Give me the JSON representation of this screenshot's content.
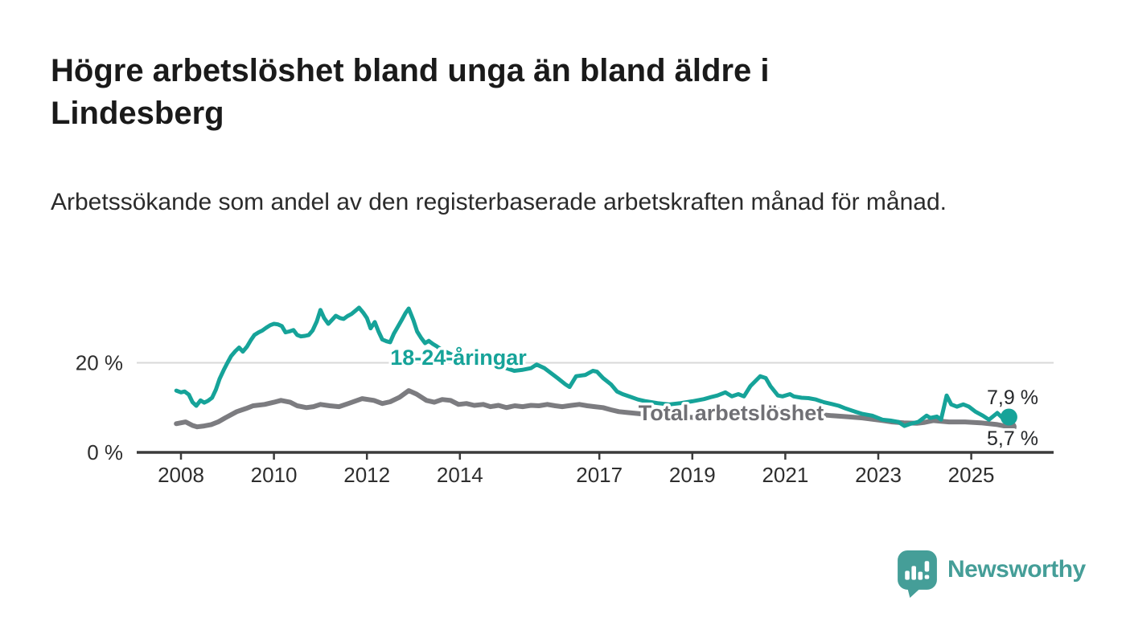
{
  "header": {
    "title": "Högre arbetslöshet bland unga än bland äldre i Lindesberg",
    "subtitle": "Arbetssökande som andel av den registerbaserade arbetskraften månad för månad."
  },
  "footer": {
    "brand": "Newsworthy",
    "brand_color": "#459E98",
    "logo_icon": "speech-bubble-bar-chart"
  },
  "chart_data": {
    "type": "line",
    "title": "Högre arbetslöshet bland unga än bland äldre i Lindesberg",
    "subtitle": "Arbetssökande som andel av den registerbaserade arbetskraften månad för månad.",
    "unit": "%",
    "grid": "horizontal-20-only",
    "legend": "inline-labels",
    "xlim": [
      2007.9,
      2026.8
    ],
    "ylim": [
      0,
      34
    ],
    "x_ticks": [
      "2008",
      "2010",
      "2012",
      "2014",
      "2017",
      "2019",
      "2021",
      "2023",
      "2025"
    ],
    "y_ticks": [
      {
        "value": 0,
        "label": "0 %"
      },
      {
        "value": 20,
        "label": "20 %"
      }
    ],
    "series": [
      {
        "name": "18-24-åringar",
        "color": "#16A399",
        "end_value": 7.9,
        "end_label": "7,9 %",
        "points": [
          [
            2007.9,
            13.8
          ],
          [
            2008.0,
            13.4
          ],
          [
            2008.08,
            13.6
          ],
          [
            2008.17,
            12.9
          ],
          [
            2008.25,
            11.2
          ],
          [
            2008.33,
            10.4
          ],
          [
            2008.42,
            11.6
          ],
          [
            2008.5,
            11.1
          ],
          [
            2008.58,
            11.5
          ],
          [
            2008.67,
            12.2
          ],
          [
            2008.75,
            14.0
          ],
          [
            2008.83,
            16.4
          ],
          [
            2008.92,
            18.4
          ],
          [
            2009.0,
            20.0
          ],
          [
            2009.08,
            21.5
          ],
          [
            2009.17,
            22.6
          ],
          [
            2009.25,
            23.4
          ],
          [
            2009.33,
            22.5
          ],
          [
            2009.42,
            23.6
          ],
          [
            2009.5,
            25.0
          ],
          [
            2009.58,
            26.2
          ],
          [
            2009.67,
            26.8
          ],
          [
            2009.75,
            27.2
          ],
          [
            2009.83,
            27.8
          ],
          [
            2009.92,
            28.4
          ],
          [
            2010.0,
            28.7
          ],
          [
            2010.08,
            28.6
          ],
          [
            2010.17,
            28.2
          ],
          [
            2010.25,
            26.8
          ],
          [
            2010.33,
            27.0
          ],
          [
            2010.42,
            27.3
          ],
          [
            2010.5,
            26.2
          ],
          [
            2010.58,
            25.9
          ],
          [
            2010.67,
            26.0
          ],
          [
            2010.75,
            26.2
          ],
          [
            2010.83,
            27.2
          ],
          [
            2010.92,
            29.2
          ],
          [
            2011.0,
            31.8
          ],
          [
            2011.08,
            30.0
          ],
          [
            2011.17,
            28.7
          ],
          [
            2011.25,
            29.6
          ],
          [
            2011.33,
            30.5
          ],
          [
            2011.42,
            30.0
          ],
          [
            2011.5,
            29.8
          ],
          [
            2011.58,
            30.4
          ],
          [
            2011.67,
            30.9
          ],
          [
            2011.75,
            31.6
          ],
          [
            2011.83,
            32.3
          ],
          [
            2011.92,
            31.2
          ],
          [
            2012.0,
            30.0
          ],
          [
            2012.08,
            27.7
          ],
          [
            2012.17,
            29.1
          ],
          [
            2012.25,
            27.0
          ],
          [
            2012.33,
            25.2
          ],
          [
            2012.42,
            24.8
          ],
          [
            2012.5,
            24.6
          ],
          [
            2012.58,
            26.5
          ],
          [
            2012.67,
            28.1
          ],
          [
            2012.75,
            29.6
          ],
          [
            2012.83,
            31.1
          ],
          [
            2012.9,
            32.1
          ],
          [
            2013.0,
            29.5
          ],
          [
            2013.08,
            27.0
          ],
          [
            2013.17,
            25.5
          ],
          [
            2013.25,
            24.4
          ],
          [
            2013.33,
            24.9
          ],
          [
            2013.42,
            24.2
          ],
          [
            2013.5,
            23.7
          ],
          [
            2013.58,
            23.1
          ],
          [
            2013.67,
            22.6
          ],
          [
            2013.75,
            22.2
          ],
          [
            2013.83,
            21.8
          ],
          [
            2013.92,
            21.3
          ],
          [
            2014.0,
            21.0
          ],
          [
            2014.17,
            20.3
          ],
          [
            2014.33,
            19.9
          ],
          [
            2014.5,
            19.6
          ],
          [
            2014.67,
            19.9
          ],
          [
            2014.83,
            19.2
          ],
          [
            2015.0,
            18.8
          ],
          [
            2015.17,
            18.2
          ],
          [
            2015.33,
            18.4
          ],
          [
            2015.53,
            18.8
          ],
          [
            2015.65,
            19.6
          ],
          [
            2015.82,
            18.8
          ],
          [
            2015.92,
            18.0
          ],
          [
            2016.1,
            16.6
          ],
          [
            2016.27,
            15.2
          ],
          [
            2016.36,
            14.6
          ],
          [
            2016.5,
            17.0
          ],
          [
            2016.7,
            17.3
          ],
          [
            2016.86,
            18.2
          ],
          [
            2016.95,
            18.0
          ],
          [
            2017.08,
            16.6
          ],
          [
            2017.25,
            15.2
          ],
          [
            2017.38,
            13.6
          ],
          [
            2017.5,
            13.0
          ],
          [
            2017.67,
            12.4
          ],
          [
            2017.83,
            11.8
          ],
          [
            2018.0,
            11.4
          ],
          [
            2018.25,
            11.0
          ],
          [
            2018.5,
            10.7
          ],
          [
            2018.75,
            11.0
          ],
          [
            2019.0,
            11.4
          ],
          [
            2019.25,
            11.9
          ],
          [
            2019.42,
            12.4
          ],
          [
            2019.54,
            12.7
          ],
          [
            2019.71,
            13.4
          ],
          [
            2019.85,
            12.5
          ],
          [
            2019.99,
            13.0
          ],
          [
            2020.11,
            12.5
          ],
          [
            2020.25,
            14.8
          ],
          [
            2020.46,
            17.0
          ],
          [
            2020.58,
            16.6
          ],
          [
            2020.68,
            14.8
          ],
          [
            2020.84,
            12.7
          ],
          [
            2020.94,
            12.5
          ],
          [
            2021.1,
            13.0
          ],
          [
            2021.18,
            12.5
          ],
          [
            2021.35,
            12.2
          ],
          [
            2021.5,
            12.1
          ],
          [
            2021.66,
            11.8
          ],
          [
            2021.83,
            11.2
          ],
          [
            2022.0,
            10.8
          ],
          [
            2022.15,
            10.4
          ],
          [
            2022.3,
            9.8
          ],
          [
            2022.5,
            9.1
          ],
          [
            2022.66,
            8.6
          ],
          [
            2022.87,
            8.2
          ],
          [
            2023.09,
            7.3
          ],
          [
            2023.26,
            7.1
          ],
          [
            2023.43,
            6.8
          ],
          [
            2023.56,
            5.9
          ],
          [
            2023.7,
            6.4
          ],
          [
            2023.86,
            6.8
          ],
          [
            2024.04,
            8.2
          ],
          [
            2024.12,
            7.7
          ],
          [
            2024.26,
            8.0
          ],
          [
            2024.35,
            7.3
          ],
          [
            2024.47,
            12.7
          ],
          [
            2024.57,
            10.7
          ],
          [
            2024.69,
            10.2
          ],
          [
            2024.83,
            10.7
          ],
          [
            2024.95,
            10.2
          ],
          [
            2025.09,
            9.1
          ],
          [
            2025.25,
            8.2
          ],
          [
            2025.38,
            7.3
          ],
          [
            2025.56,
            8.8
          ],
          [
            2025.68,
            7.6
          ],
          [
            2025.81,
            7.9
          ]
        ]
      },
      {
        "name": "Total arbetslöshet",
        "color": "#7C7C80",
        "end_value": 5.7,
        "end_label": "5,7 %",
        "points": [
          [
            2007.9,
            6.4
          ],
          [
            2008.1,
            6.8
          ],
          [
            2008.25,
            6.0
          ],
          [
            2008.35,
            5.7
          ],
          [
            2008.5,
            5.9
          ],
          [
            2008.65,
            6.2
          ],
          [
            2008.8,
            6.8
          ],
          [
            2008.95,
            7.7
          ],
          [
            2009.2,
            9.1
          ],
          [
            2009.4,
            9.8
          ],
          [
            2009.55,
            10.4
          ],
          [
            2009.8,
            10.7
          ],
          [
            2010.0,
            11.2
          ],
          [
            2010.15,
            11.6
          ],
          [
            2010.35,
            11.2
          ],
          [
            2010.5,
            10.4
          ],
          [
            2010.7,
            10.0
          ],
          [
            2010.85,
            10.2
          ],
          [
            2011.0,
            10.7
          ],
          [
            2011.2,
            10.4
          ],
          [
            2011.4,
            10.2
          ],
          [
            2011.6,
            10.9
          ],
          [
            2011.9,
            12.0
          ],
          [
            2012.15,
            11.6
          ],
          [
            2012.33,
            10.9
          ],
          [
            2012.5,
            11.3
          ],
          [
            2012.7,
            12.3
          ],
          [
            2012.9,
            13.8
          ],
          [
            2013.07,
            13.0
          ],
          [
            2013.28,
            11.6
          ],
          [
            2013.45,
            11.2
          ],
          [
            2013.62,
            11.8
          ],
          [
            2013.8,
            11.6
          ],
          [
            2013.97,
            10.7
          ],
          [
            2014.14,
            10.9
          ],
          [
            2014.31,
            10.5
          ],
          [
            2014.5,
            10.7
          ],
          [
            2014.66,
            10.2
          ],
          [
            2014.83,
            10.5
          ],
          [
            2015.0,
            10.0
          ],
          [
            2015.18,
            10.4
          ],
          [
            2015.35,
            10.2
          ],
          [
            2015.53,
            10.5
          ],
          [
            2015.7,
            10.4
          ],
          [
            2015.88,
            10.7
          ],
          [
            2016.05,
            10.4
          ],
          [
            2016.2,
            10.2
          ],
          [
            2016.4,
            10.5
          ],
          [
            2016.57,
            10.7
          ],
          [
            2016.74,
            10.4
          ],
          [
            2016.9,
            10.2
          ],
          [
            2017.08,
            10.0
          ],
          [
            2017.25,
            9.5
          ],
          [
            2017.42,
            9.1
          ],
          [
            2017.6,
            8.9
          ],
          [
            2017.8,
            8.7
          ],
          [
            2018.0,
            8.5
          ],
          [
            2018.3,
            8.2
          ],
          [
            2018.6,
            8.0
          ],
          [
            2019.0,
            7.8
          ],
          [
            2019.4,
            7.9
          ],
          [
            2019.8,
            8.2
          ],
          [
            2020.1,
            8.6
          ],
          [
            2020.4,
            9.6
          ],
          [
            2020.6,
            9.8
          ],
          [
            2020.9,
            9.4
          ],
          [
            2021.2,
            9.0
          ],
          [
            2021.5,
            8.7
          ],
          [
            2021.8,
            8.4
          ],
          [
            2022.0,
            8.2
          ],
          [
            2022.27,
            8.0
          ],
          [
            2022.66,
            7.7
          ],
          [
            2023.1,
            7.1
          ],
          [
            2023.3,
            6.8
          ],
          [
            2023.55,
            6.6
          ],
          [
            2023.83,
            6.5
          ],
          [
            2024.0,
            6.7
          ],
          [
            2024.18,
            7.1
          ],
          [
            2024.52,
            6.8
          ],
          [
            2024.87,
            6.8
          ],
          [
            2025.2,
            6.6
          ],
          [
            2025.56,
            6.2
          ],
          [
            2025.81,
            5.7
          ]
        ]
      }
    ]
  }
}
